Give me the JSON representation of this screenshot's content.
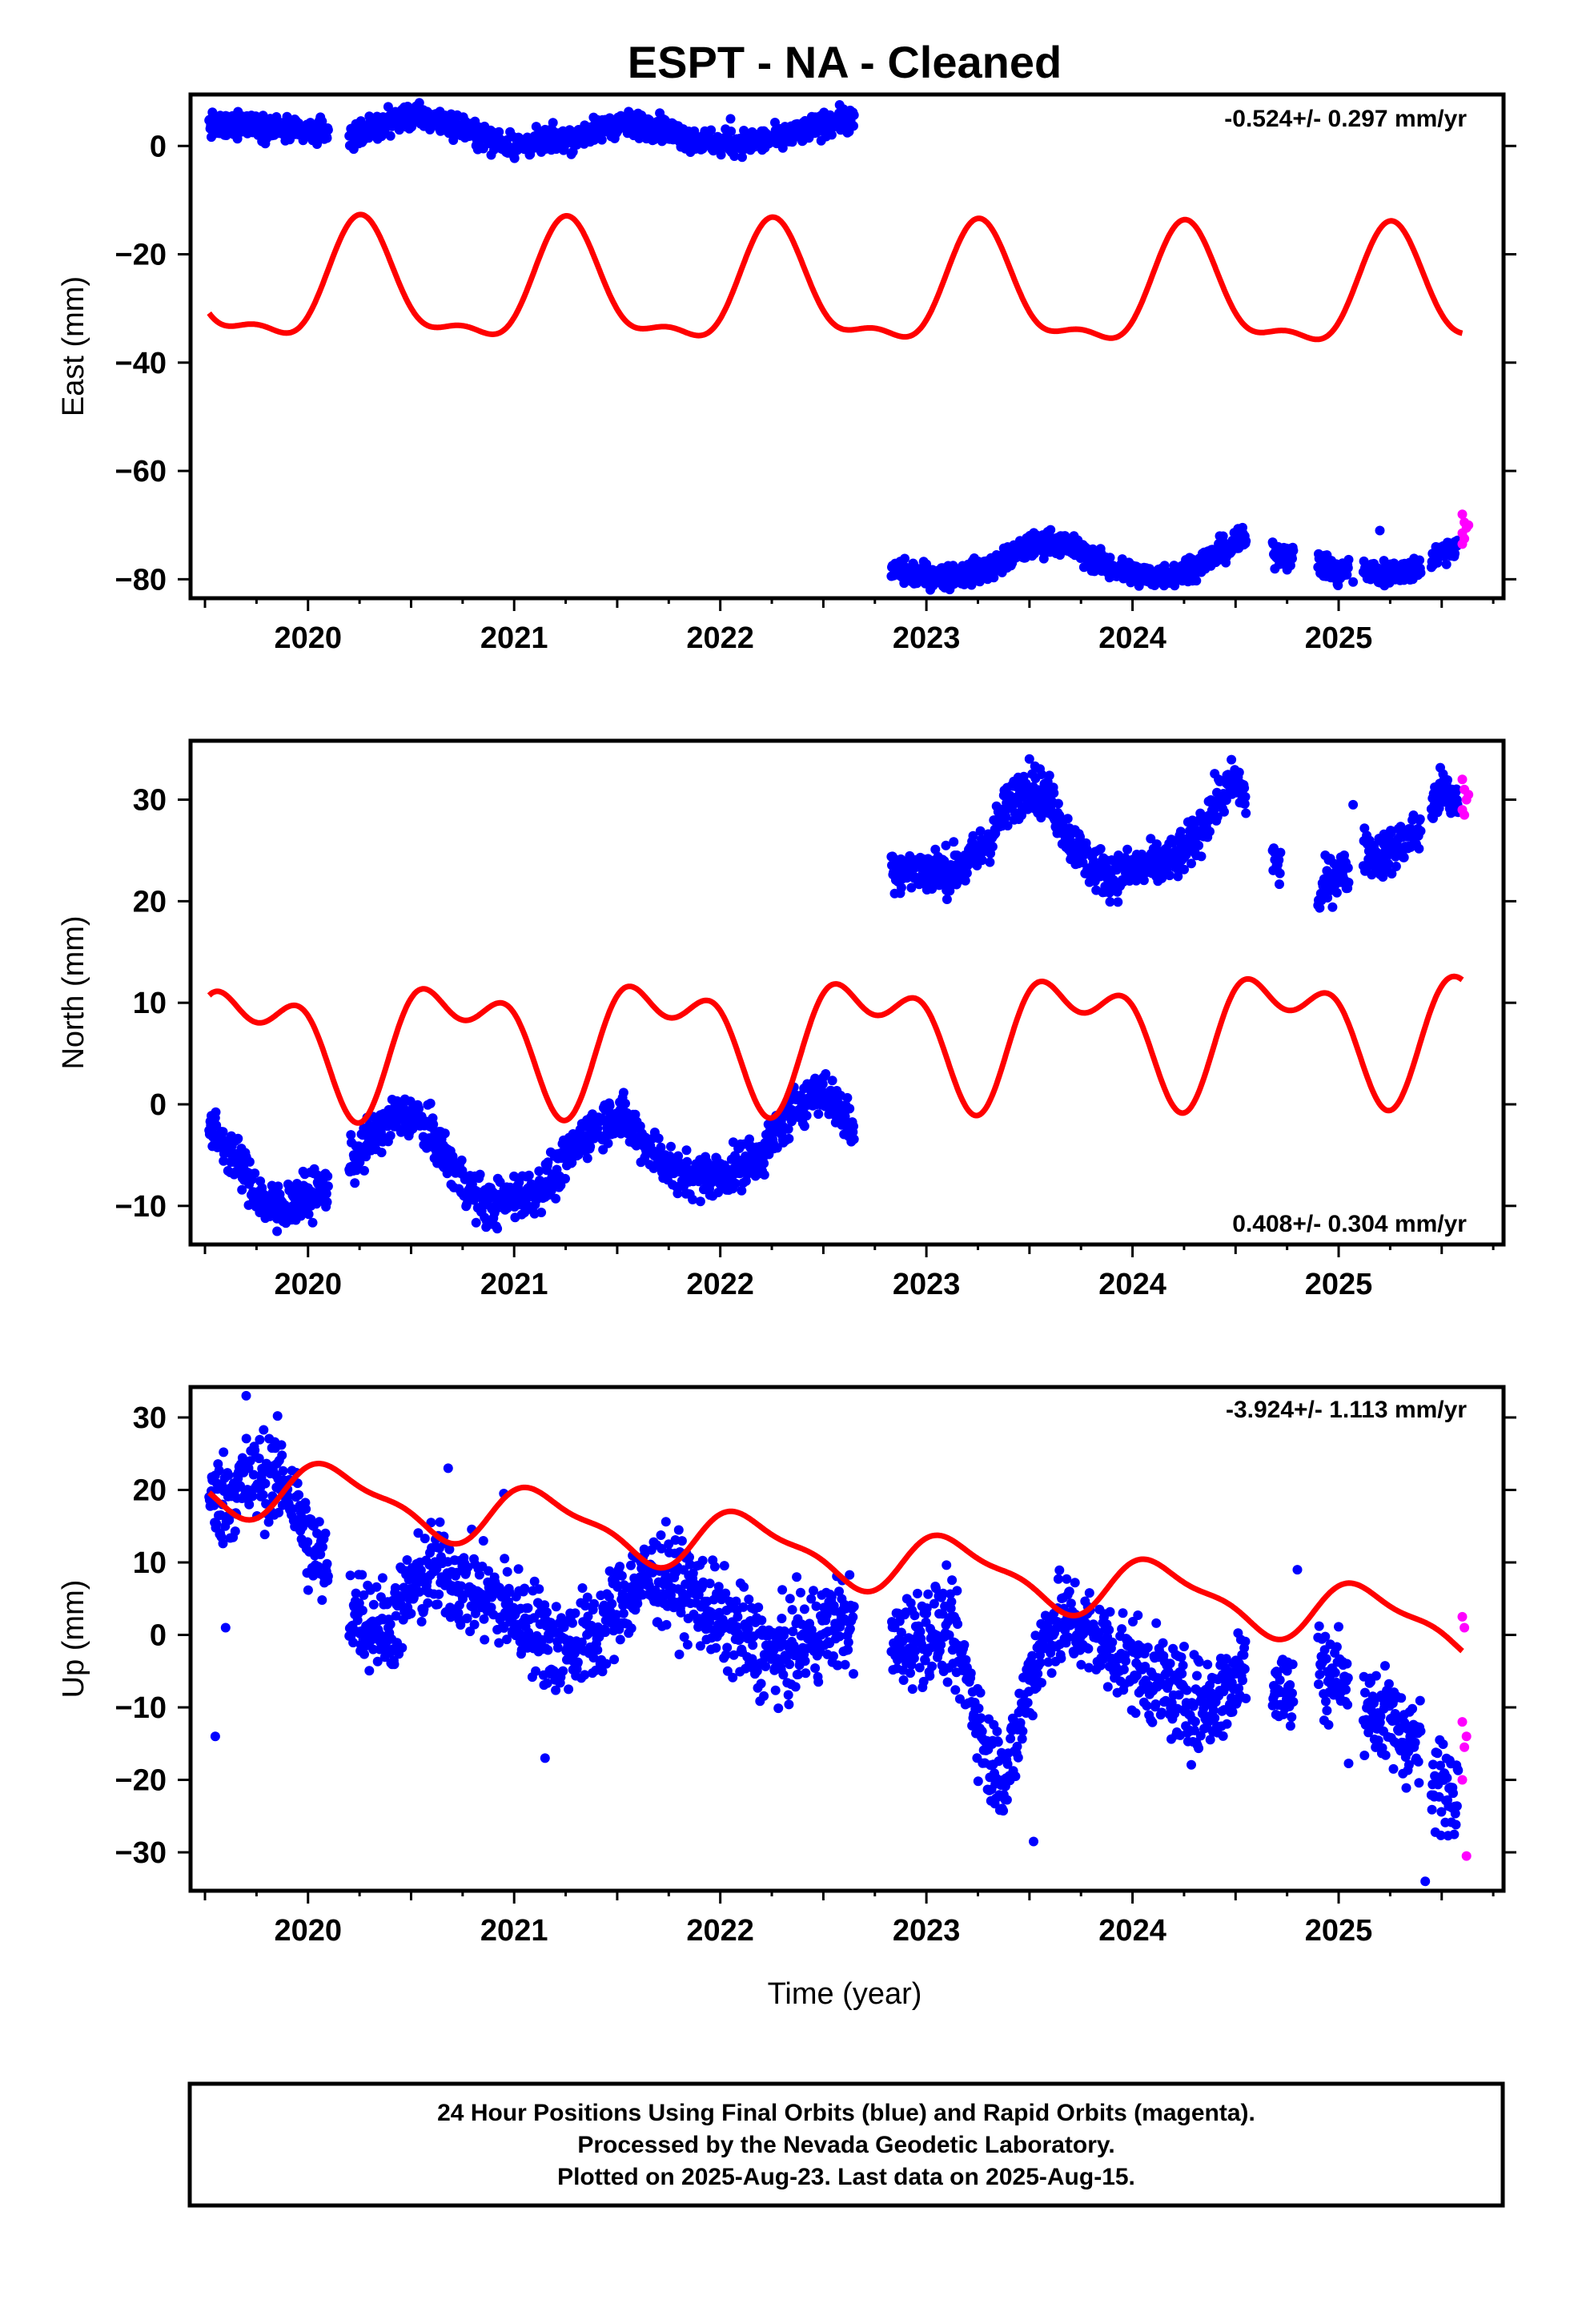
{
  "title": "ESPT  - NA - Cleaned",
  "footer": {
    "line1": "24 Hour Positions Using Final Orbits (blue) and Rapid Orbits (magenta).",
    "line2": "Processed by the Nevada Geodetic Laboratory.",
    "line3": "Plotted on 2025-Aug-23. Last data on 2025-Aug-15."
  },
  "colors": {
    "final_orbits": "#0000ff",
    "rapid_orbits": "#ff00ff",
    "model": "#ff0000"
  },
  "chart_data": [
    {
      "type": "scatter",
      "ylabel": "East (mm)",
      "xlabel": "",
      "rate_label": "-0.524+/- 0.297 mm/yr",
      "xlim": [
        2019.43,
        2025.8
      ],
      "ylim": [
        -83.5,
        9.5
      ],
      "x_ticks": [
        2020,
        2021,
        2022,
        2023,
        2024,
        2025
      ],
      "y_ticks": [
        0,
        -20,
        -40,
        -60,
        -80
      ],
      "series": [
        {
          "name": "Final Orbits",
          "color": "#0000ff",
          "segments": [
            {
              "x": [
                2019.52,
                2019.6,
                2019.7,
                2019.8,
                2019.9,
                2020.0,
                2020.1
              ],
              "y": [
                4,
                3.5,
                4.5,
                3.5,
                3,
                2.5,
                2.5
              ]
            },
            {
              "x": [
                2020.2,
                2020.3,
                2020.4,
                2020.5,
                2020.6,
                2020.7,
                2020.8,
                2020.9,
                2021.0,
                2021.1,
                2021.2,
                2021.3,
                2021.4,
                2021.5,
                2021.6,
                2021.7,
                2021.8,
                2021.9,
                2022.0,
                2022.1,
                2022.2,
                2022.3,
                2022.4,
                2022.5,
                2022.6,
                2022.65
              ],
              "y": [
                2,
                3,
                4.5,
                5.5,
                5,
                4,
                2.5,
                1,
                0,
                0.5,
                1.5,
                1.5,
                3,
                4,
                4,
                3.5,
                2,
                1,
                0.5,
                0.5,
                1,
                1.5,
                2.5,
                4,
                5,
                4.5
              ]
            },
            {
              "x": [
                2022.83,
                2022.95,
                2023.1,
                2023.2,
                2023.3,
                2023.4,
                2023.5,
                2023.6,
                2023.7,
                2023.8,
                2023.9,
                2024.0,
                2024.1,
                2024.2,
                2024.3,
                2024.4,
                2024.5,
                2024.55
              ],
              "y": [
                -78.5,
                -79,
                -79.5,
                -79,
                -78,
                -76,
                -74,
                -73,
                -74,
                -76,
                -78,
                -79,
                -79.5,
                -79,
                -77.5,
                -75.5,
                -73.5,
                -73
              ]
            },
            {
              "x": [
                2024.68,
                2024.78
              ],
              "y": [
                -75,
                -76
              ]
            },
            {
              "x": [
                2024.9,
                2024.95,
                2025.0,
                2025.05
              ],
              "y": [
                -77,
                -78,
                -79,
                -78
              ]
            },
            {
              "x": [
                2025.12,
                2025.2,
                2025.3,
                2025.4
              ],
              "y": [
                -78,
                -79,
                -78.5,
                -78
              ]
            },
            {
              "x": [
                2025.45,
                2025.5,
                2025.55,
                2025.58
              ],
              "y": [
                -76,
                -75,
                -74,
                -73
              ]
            }
          ],
          "extra_points": [
            [
              2022.05,
              5
            ],
            [
              2025.2,
              -71
            ],
            [
              2025.07,
              -80.5
            ],
            [
              2025.36,
              -80
            ]
          ]
        },
        {
          "name": "Rapid Orbits",
          "color": "#ff00ff",
          "points": [
            [
              2025.6,
              -68
            ],
            [
              2025.61,
              -69.5
            ],
            [
              2025.62,
              -70.5
            ],
            [
              2025.6,
              -71.5
            ],
            [
              2025.61,
              -72.5
            ],
            [
              2025.63,
              -70
            ],
            [
              2025.6,
              -73.5
            ]
          ]
        },
        {
          "name": "Model",
          "color": "#ff0000",
          "kind": "curve",
          "params": {
            "a": -27.3,
            "b": -0.235,
            "c1": -0.8,
            "s1": 10.2,
            "c2": -3.9,
            "s2": 0
          },
          "x_range": [
            2019.52,
            2025.6
          ]
        }
      ]
    },
    {
      "type": "scatter",
      "ylabel": "North (mm)",
      "xlabel": "",
      "rate_label": "0.408+/- 0.304 mm/yr",
      "xlim": [
        2019.43,
        2025.8
      ],
      "ylim": [
        -13.8,
        35.8
      ],
      "x_ticks": [
        2020,
        2021,
        2022,
        2023,
        2024,
        2025
      ],
      "y_ticks": [
        30,
        20,
        10,
        0,
        -10
      ],
      "series": [
        {
          "name": "Final Orbits",
          "color": "#0000ff",
          "segments": [
            {
              "x": [
                2019.52,
                2019.6,
                2019.7,
                2019.8,
                2019.9,
                2020.0,
                2020.1
              ],
              "y": [
                -2.5,
                -4,
                -7,
                -10,
                -10,
                -9,
                -8
              ]
            },
            {
              "x": [
                2020.2,
                2020.3,
                2020.4,
                2020.5,
                2020.6,
                2020.7,
                2020.8,
                2020.9,
                2021.0,
                2021.1,
                2021.2,
                2021.3,
                2021.4,
                2021.5,
                2021.6,
                2021.7,
                2021.8,
                2021.9,
                2022.0,
                2022.1,
                2022.2,
                2022.3,
                2022.4,
                2022.5,
                2022.6,
                2022.65
              ],
              "y": [
                -6,
                -3.5,
                -1.5,
                -1,
                -3,
                -6,
                -9,
                -10,
                -9,
                -8.5,
                -7,
                -4,
                -2,
                -1,
                -3,
                -5,
                -7,
                -7,
                -7,
                -6,
                -5,
                -2,
                0.5,
                1.5,
                -1,
                -3
              ]
            },
            {
              "x": [
                2022.83,
                2022.9,
                2023.0,
                2023.1,
                2023.2,
                2023.3,
                2023.4,
                2023.5,
                2023.6,
                2023.7,
                2023.8,
                2023.9,
                2024.0,
                2024.1,
                2024.2,
                2024.3,
                2024.4,
                2024.5,
                2024.55
              ],
              "y": [
                23.5,
                23,
                23,
                23,
                23.5,
                26,
                29.5,
                31.5,
                30,
                26,
                23.5,
                22.5,
                23,
                23.5,
                24,
                26,
                29.5,
                32,
                30
              ]
            },
            {
              "x": [
                2024.68,
                2024.72
              ],
              "y": [
                24.5,
                23
              ]
            },
            {
              "x": [
                2024.9,
                2024.95,
                2025.0,
                2025.05
              ],
              "y": [
                20,
                22,
                23,
                22.5
              ]
            },
            {
              "x": [
                2025.12,
                2025.2,
                2025.3,
                2025.4
              ],
              "y": [
                25,
                24.5,
                25.5,
                27
              ]
            },
            {
              "x": [
                2025.45,
                2025.5,
                2025.55,
                2025.58
              ],
              "y": [
                29,
                31,
                30,
                30.5
              ]
            }
          ],
          "extra_points": [
            [
              2019.85,
              -12.5
            ],
            [
              2023.5,
              34
            ],
            [
              2025.07,
              29.5
            ]
          ]
        },
        {
          "name": "Rapid Orbits",
          "color": "#ff00ff",
          "points": [
            [
              2025.6,
              32
            ],
            [
              2025.61,
              31
            ],
            [
              2025.62,
              30
            ],
            [
              2025.6,
              29
            ],
            [
              2025.61,
              28.5
            ],
            [
              2025.63,
              30.5
            ]
          ]
        },
        {
          "name": "Model",
          "color": "#ff0000",
          "kind": "curve",
          "params": {
            "a": 6.93,
            "b": 0.244,
            "c1": -0.8,
            "s1": -5.0,
            "c2": 3.2,
            "s2": 0
          },
          "x_range": [
            2019.52,
            2025.6
          ]
        }
      ]
    },
    {
      "type": "scatter",
      "ylabel": "Up (mm)",
      "xlabel": "Time (year)",
      "rate_label": "-3.924+/- 1.113 mm/yr",
      "xlim": [
        2019.43,
        2025.8
      ],
      "ylim": [
        -35.3,
        34.2
      ],
      "x_ticks": [
        2020,
        2021,
        2022,
        2023,
        2024,
        2025
      ],
      "y_ticks": [
        30,
        20,
        10,
        0,
        -10,
        -20,
        -30
      ],
      "series": [
        {
          "name": "Final Orbits",
          "color": "#0000ff",
          "segments": [
            {
              "x": [
                2019.52,
                2019.6,
                2019.7,
                2019.8,
                2019.9,
                2020.0,
                2020.1
              ],
              "y": [
                18,
                19,
                21,
                22,
                21,
                13,
                8
              ]
            },
            {
              "x": [
                2020.2,
                2020.3,
                2020.4,
                2020.5,
                2020.6,
                2020.7,
                2020.8,
                2020.9,
                2021.0,
                2021.1,
                2021.2,
                2021.3,
                2021.4,
                2021.5,
                2021.6,
                2021.7,
                2021.8,
                2021.9,
                2022.0,
                2022.1,
                2022.2,
                2022.3,
                2022.4,
                2022.5,
                2022.6,
                2022.65
              ],
              "y": [
                4,
                2,
                1,
                6,
                9,
                8,
                6,
                5,
                3,
                1,
                -2,
                -1,
                0,
                4,
                7,
                8,
                7,
                5,
                2,
                0,
                -2,
                -3,
                -1,
                1,
                2,
                1
              ]
            },
            {
              "x": [
                2022.83,
                2022.95,
                2023.1,
                2023.2,
                2023.3,
                2023.4,
                2023.5,
                2023.6,
                2023.7,
                2023.8,
                2023.9,
                2024.0,
                2024.1,
                2024.2,
                2024.3,
                2024.4,
                2024.5,
                2024.55
              ],
              "y": [
                -2,
                0,
                1,
                -6,
                -17,
                -19,
                -6,
                1,
                2,
                0,
                -2,
                -4,
                -6,
                -8,
                -10,
                -9,
                -6,
                -3
              ]
            },
            {
              "x": [
                2024.68,
                2024.78
              ],
              "y": [
                -6,
                -8
              ]
            },
            {
              "x": [
                2024.9,
                2024.95,
                2025.0,
                2025.05
              ],
              "y": [
                -3,
                -6,
                -5,
                -9
              ]
            },
            {
              "x": [
                2025.12,
                2025.2,
                2025.3,
                2025.4
              ],
              "y": [
                -9,
                -11,
                -13,
                -16
              ]
            },
            {
              "x": [
                2025.45,
                2025.5,
                2025.55,
                2025.58
              ],
              "y": [
                -22,
                -20,
                -21,
                -18
              ]
            }
          ],
          "extra_points": [
            [
              2019.55,
              -14
            ],
            [
              2019.7,
              33
            ],
            [
              2019.6,
              1
            ],
            [
              2020.68,
              23
            ],
            [
              2021.15,
              -17
            ],
            [
              2023.52,
              -28.5
            ],
            [
              2025.42,
              -34
            ],
            [
              2024.8,
              9
            ],
            [
              2020.95,
              19.5
            ]
          ]
        },
        {
          "name": "Rapid Orbits",
          "color": "#ff00ff",
          "points": [
            [
              2025.6,
              2.5
            ],
            [
              2025.61,
              1
            ],
            [
              2025.6,
              -12
            ],
            [
              2025.62,
              -14
            ],
            [
              2025.61,
              -15.5
            ],
            [
              2025.6,
              -20
            ],
            [
              2025.62,
              -30.5
            ]
          ]
        },
        {
          "name": "Model",
          "color": "#ff0000",
          "kind": "curve",
          "params": {
            "a": 11.3,
            "b": -3.3,
            "c1": 2.4,
            "s1": 3.0,
            "c2": 1.3,
            "s2": 0
          },
          "x_range": [
            2019.52,
            2025.6
          ]
        }
      ]
    }
  ]
}
